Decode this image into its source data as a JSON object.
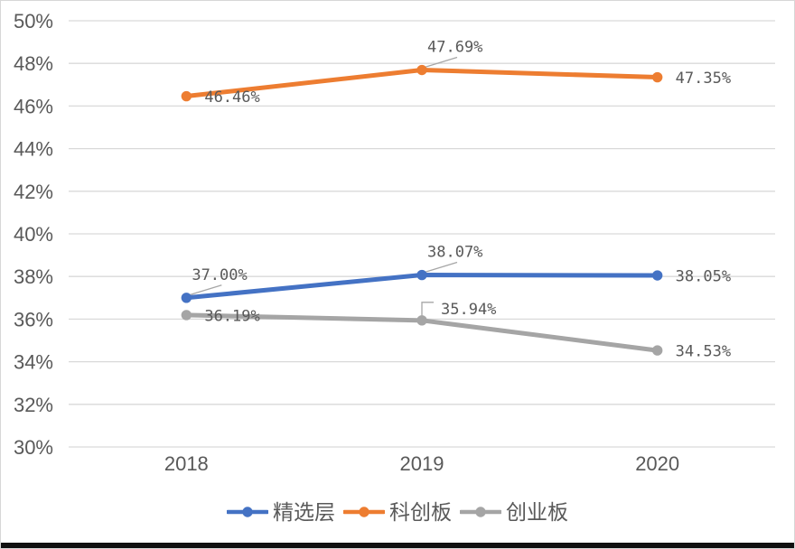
{
  "chart_data": {
    "type": "line",
    "title": "",
    "categories": [
      "2018",
      "2019",
      "2020"
    ],
    "series": [
      {
        "name": "精选层",
        "color": "#4472C4",
        "values": [
          37.0,
          38.07,
          38.05
        ],
        "labels": [
          "37.00%",
          "38.07%",
          "38.05%"
        ],
        "label_placements": [
          "above",
          "above",
          "right"
        ]
      },
      {
        "name": "科创板",
        "color": "#ED7D31",
        "values": [
          46.46,
          47.69,
          47.35
        ],
        "labels": [
          "46.46%",
          "47.69%",
          "47.35%"
        ],
        "label_placements": [
          "right",
          "above",
          "right"
        ]
      },
      {
        "name": "创业板",
        "color": "#A5A5A5",
        "values": [
          36.19,
          35.94,
          34.53
        ],
        "labels": [
          "36.19%",
          "35.94%",
          "34.53%"
        ],
        "label_placements": [
          "right",
          "elbow",
          "right"
        ]
      }
    ],
    "xlabel": "",
    "ylabel": "",
    "ylim": [
      30,
      50
    ],
    "yticks": {
      "values": [
        30,
        32,
        34,
        36,
        38,
        40,
        42,
        44,
        46,
        48,
        50
      ],
      "labels": [
        "30%",
        "32%",
        "34%",
        "36%",
        "38%",
        "40%",
        "42%",
        "44%",
        "46%",
        "48%",
        "50%"
      ]
    },
    "grid": true,
    "legend_position": "bottom",
    "colors": {
      "gridline": "#D9D9D9",
      "tick_text": "#595959",
      "data_label_text": "#595959",
      "leader_line": "#A6A6A6",
      "frame_border": "#D7D7D7",
      "bottom_bar": "#101010",
      "background": "#FFFFFF"
    }
  }
}
